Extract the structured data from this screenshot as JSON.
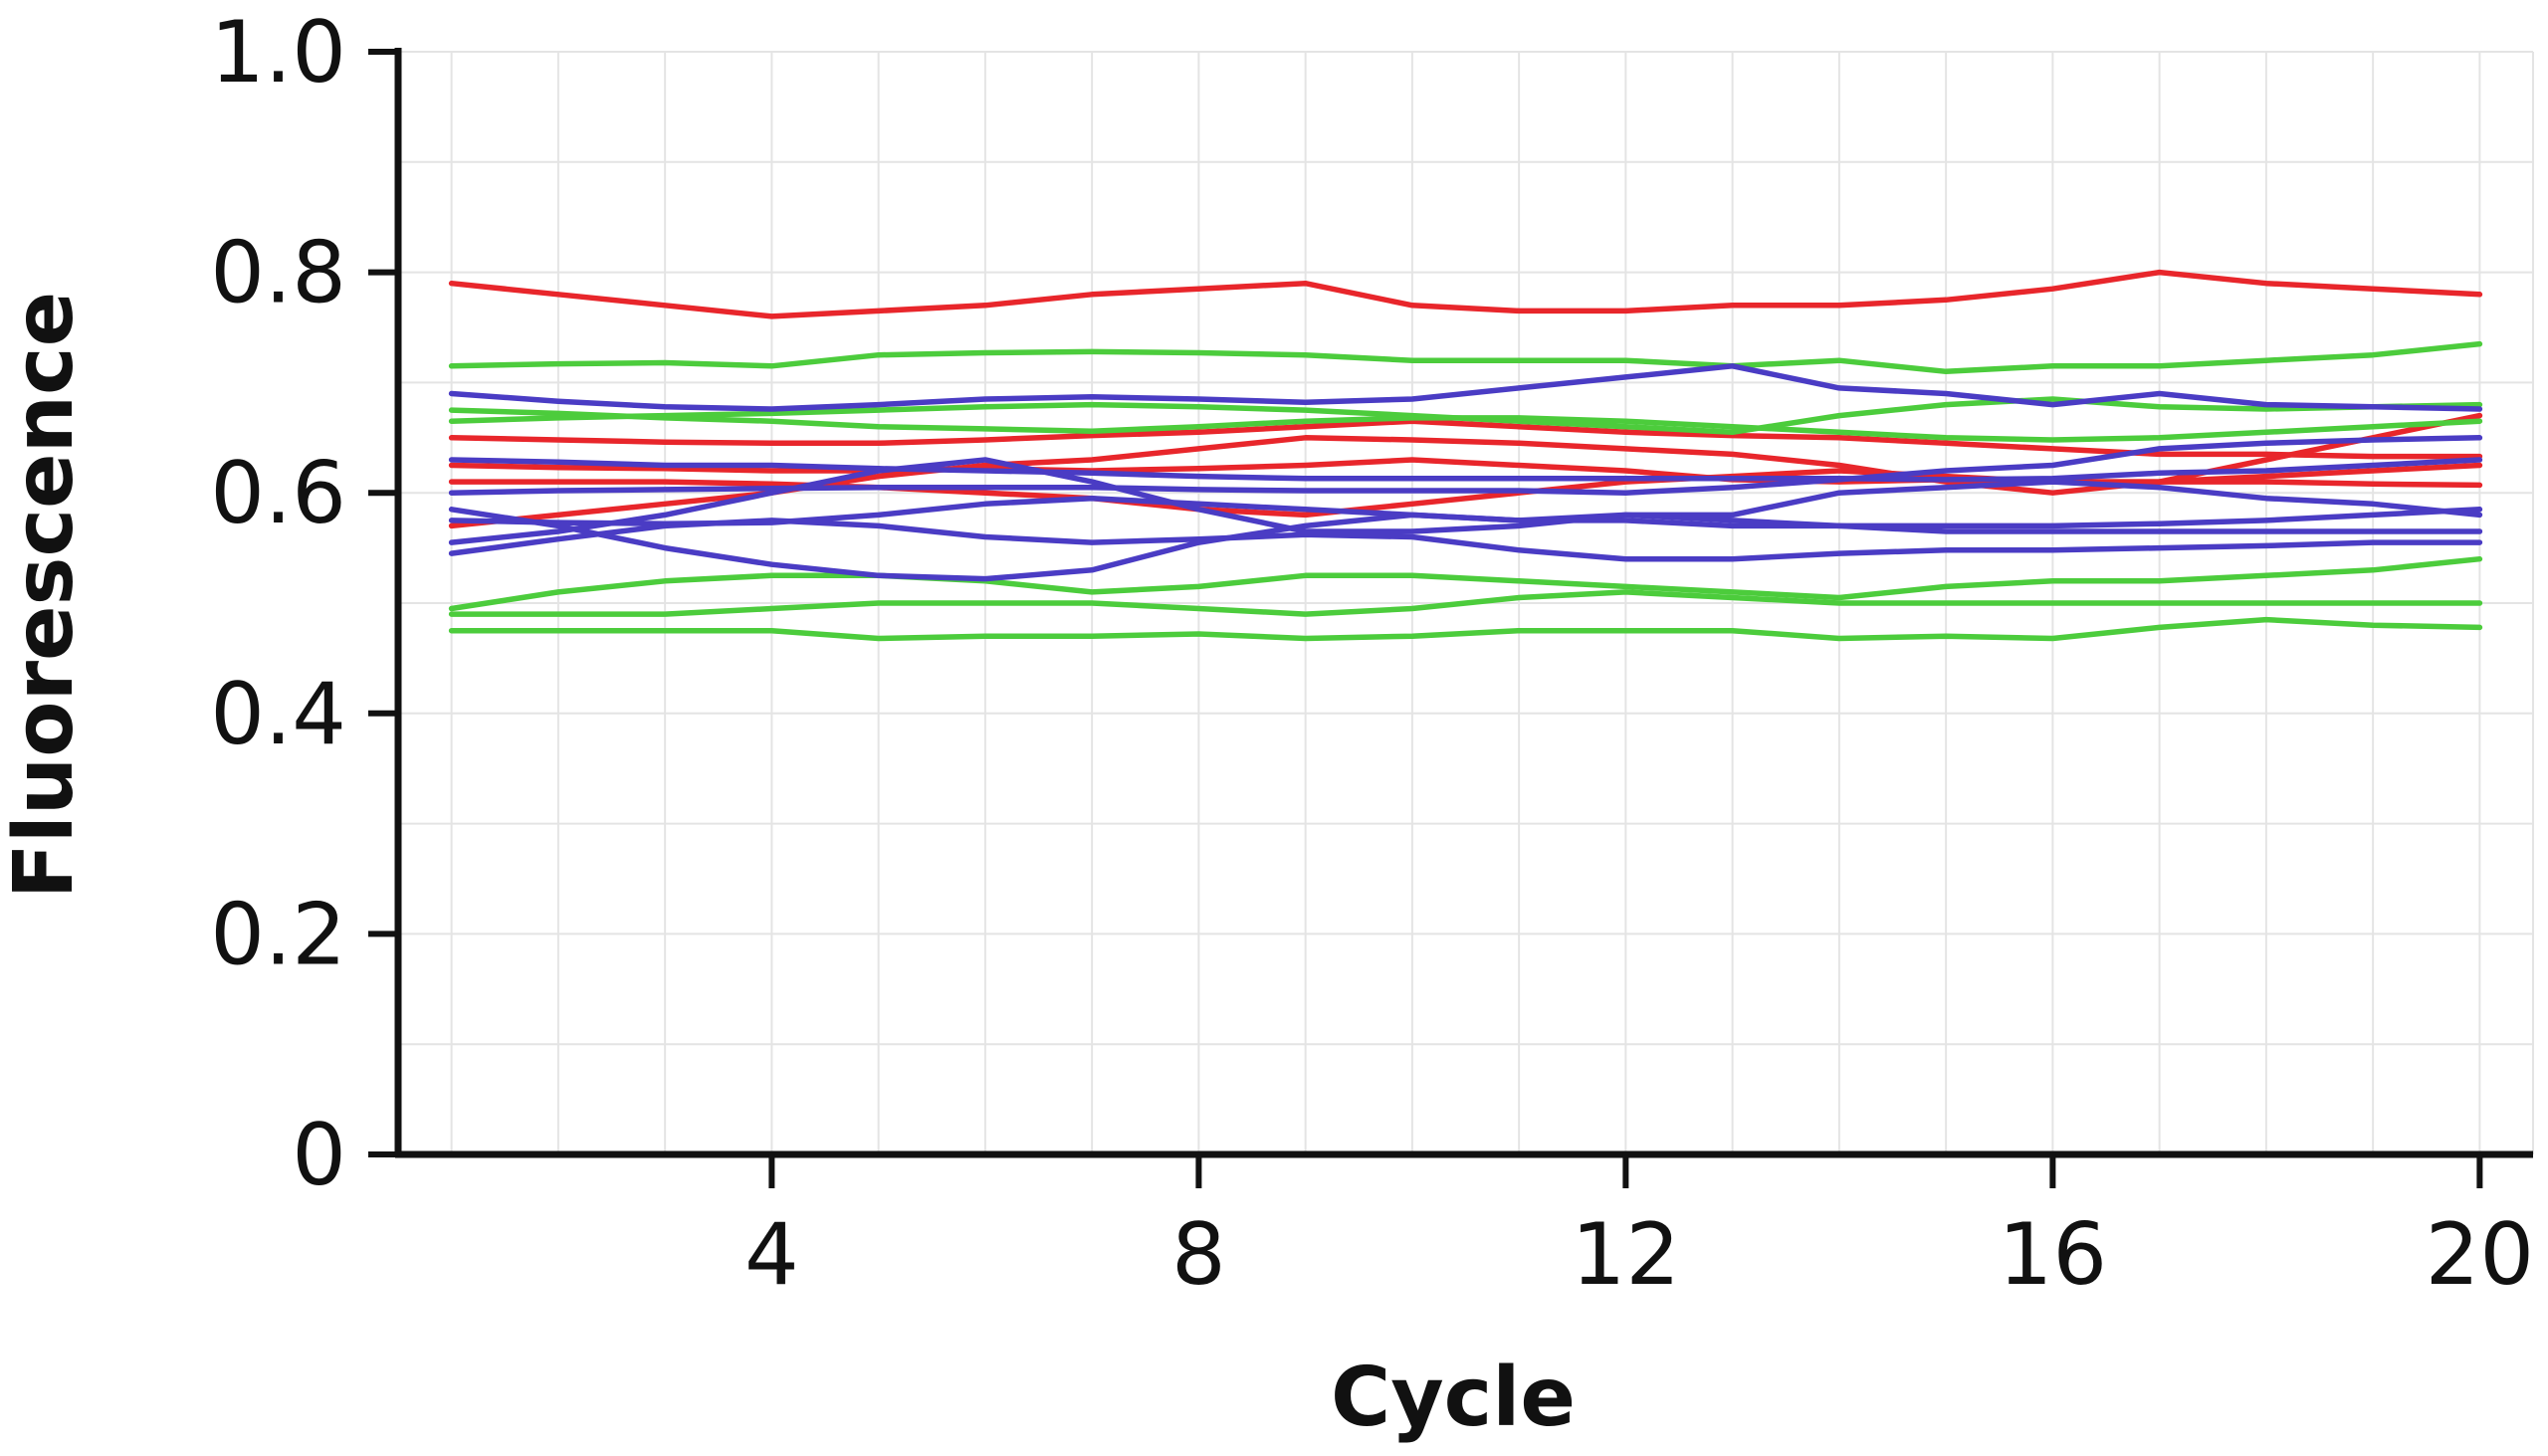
{
  "chart_data": {
    "type": "line",
    "title": "",
    "xlabel": "Cycle",
    "ylabel": "Fluorescence",
    "xlim": [
      0.5,
      20.5
    ],
    "ylim": [
      0,
      1.0
    ],
    "x_ticks": [
      4,
      8,
      12,
      16,
      20
    ],
    "x_tick_labels": [
      "4",
      "8",
      "12",
      "16",
      "20"
    ],
    "y_ticks": [
      0,
      0.2,
      0.4,
      0.6,
      0.8,
      1.0
    ],
    "y_tick_labels": [
      "0",
      "0.2",
      "0.4",
      "0.6",
      "0.8",
      "1.0"
    ],
    "grid": true,
    "legend": "none",
    "colors": {
      "red": "#e8262b",
      "green": "#4ccc3c",
      "blue": "#4a3cc4"
    },
    "x": [
      1,
      2,
      3,
      4,
      5,
      6,
      7,
      8,
      9,
      10,
      11,
      12,
      13,
      14,
      15,
      16,
      17,
      18,
      19,
      20
    ],
    "series": [
      {
        "color": "red",
        "values": [
          0.79,
          0.78,
          0.77,
          0.76,
          0.765,
          0.77,
          0.78,
          0.785,
          0.79,
          0.77,
          0.765,
          0.765,
          0.77,
          0.77,
          0.775,
          0.785,
          0.8,
          0.79,
          0.785,
          0.78
        ]
      },
      {
        "color": "red",
        "values": [
          0.65,
          0.648,
          0.646,
          0.645,
          0.645,
          0.648,
          0.652,
          0.655,
          0.66,
          0.665,
          0.66,
          0.655,
          0.652,
          0.65,
          0.645,
          0.64,
          0.635,
          0.635,
          0.633,
          0.633
        ]
      },
      {
        "color": "red",
        "values": [
          0.625,
          0.623,
          0.622,
          0.62,
          0.62,
          0.622,
          0.62,
          0.622,
          0.625,
          0.63,
          0.625,
          0.62,
          0.612,
          0.61,
          0.612,
          0.61,
          0.61,
          0.61,
          0.608,
          0.607
        ]
      },
      {
        "color": "red",
        "values": [
          0.61,
          0.61,
          0.61,
          0.608,
          0.605,
          0.6,
          0.595,
          0.585,
          0.58,
          0.59,
          0.6,
          0.61,
          0.615,
          0.62,
          0.615,
          0.61,
          0.61,
          0.615,
          0.62,
          0.625
        ]
      },
      {
        "color": "red",
        "values": [
          0.57,
          0.58,
          0.59,
          0.6,
          0.615,
          0.625,
          0.63,
          0.64,
          0.65,
          0.648,
          0.645,
          0.64,
          0.635,
          0.625,
          0.61,
          0.6,
          0.61,
          0.63,
          0.65,
          0.67
        ]
      },
      {
        "color": "green",
        "values": [
          0.715,
          0.717,
          0.718,
          0.715,
          0.725,
          0.727,
          0.728,
          0.727,
          0.725,
          0.72,
          0.72,
          0.72,
          0.715,
          0.72,
          0.71,
          0.715,
          0.715,
          0.72,
          0.725,
          0.735
        ]
      },
      {
        "color": "green",
        "values": [
          0.665,
          0.668,
          0.67,
          0.672,
          0.675,
          0.678,
          0.68,
          0.678,
          0.675,
          0.67,
          0.665,
          0.66,
          0.655,
          0.67,
          0.68,
          0.685,
          0.678,
          0.676,
          0.678,
          0.68
        ]
      },
      {
        "color": "green",
        "values": [
          0.675,
          0.672,
          0.668,
          0.665,
          0.66,
          0.658,
          0.656,
          0.66,
          0.665,
          0.668,
          0.668,
          0.665,
          0.66,
          0.655,
          0.65,
          0.648,
          0.65,
          0.655,
          0.66,
          0.665
        ]
      },
      {
        "color": "green",
        "values": [
          0.495,
          0.51,
          0.52,
          0.525,
          0.525,
          0.52,
          0.51,
          0.515,
          0.525,
          0.525,
          0.52,
          0.515,
          0.51,
          0.505,
          0.515,
          0.52,
          0.52,
          0.525,
          0.53,
          0.54
        ]
      },
      {
        "color": "green",
        "values": [
          0.49,
          0.49,
          0.49,
          0.495,
          0.5,
          0.5,
          0.5,
          0.495,
          0.49,
          0.495,
          0.505,
          0.51,
          0.505,
          0.5,
          0.5,
          0.5,
          0.5,
          0.5,
          0.5,
          0.5
        ]
      },
      {
        "color": "green",
        "values": [
          0.475,
          0.475,
          0.475,
          0.475,
          0.468,
          0.47,
          0.47,
          0.472,
          0.468,
          0.47,
          0.475,
          0.475,
          0.475,
          0.468,
          0.47,
          0.468,
          0.478,
          0.485,
          0.48,
          0.478
        ]
      },
      {
        "color": "blue",
        "values": [
          0.69,
          0.683,
          0.678,
          0.676,
          0.68,
          0.685,
          0.687,
          0.685,
          0.682,
          0.685,
          0.695,
          0.705,
          0.715,
          0.695,
          0.69,
          0.68,
          0.69,
          0.68,
          0.678,
          0.676
        ]
      },
      {
        "color": "blue",
        "values": [
          0.63,
          0.628,
          0.625,
          0.625,
          0.622,
          0.62,
          0.618,
          0.615,
          0.613,
          0.613,
          0.613,
          0.613,
          0.613,
          0.613,
          0.612,
          0.613,
          0.618,
          0.62,
          0.625,
          0.63
        ]
      },
      {
        "color": "blue",
        "values": [
          0.6,
          0.602,
          0.603,
          0.604,
          0.605,
          0.605,
          0.605,
          0.603,
          0.602,
          0.602,
          0.602,
          0.6,
          0.605,
          0.612,
          0.62,
          0.625,
          0.64,
          0.645,
          0.648,
          0.65
        ]
      },
      {
        "color": "blue",
        "values": [
          0.575,
          0.573,
          0.572,
          0.573,
          0.58,
          0.59,
          0.595,
          0.59,
          0.585,
          0.58,
          0.575,
          0.575,
          0.57,
          0.57,
          0.57,
          0.57,
          0.572,
          0.575,
          0.58,
          0.585
        ]
      },
      {
        "color": "blue",
        "values": [
          0.555,
          0.565,
          0.58,
          0.6,
          0.62,
          0.63,
          0.61,
          0.585,
          0.565,
          0.565,
          0.57,
          0.58,
          0.58,
          0.6,
          0.605,
          0.61,
          0.605,
          0.595,
          0.59,
          0.58
        ]
      },
      {
        "color": "blue",
        "values": [
          0.545,
          0.558,
          0.57,
          0.575,
          0.57,
          0.56,
          0.555,
          0.558,
          0.562,
          0.56,
          0.548,
          0.54,
          0.54,
          0.545,
          0.548,
          0.548,
          0.55,
          0.552,
          0.555,
          0.555
        ]
      },
      {
        "color": "blue",
        "values": [
          0.585,
          0.57,
          0.55,
          0.535,
          0.525,
          0.522,
          0.53,
          0.555,
          0.57,
          0.58,
          0.575,
          0.58,
          0.575,
          0.57,
          0.565,
          0.565,
          0.565,
          0.565,
          0.565,
          0.565
        ]
      }
    ]
  }
}
